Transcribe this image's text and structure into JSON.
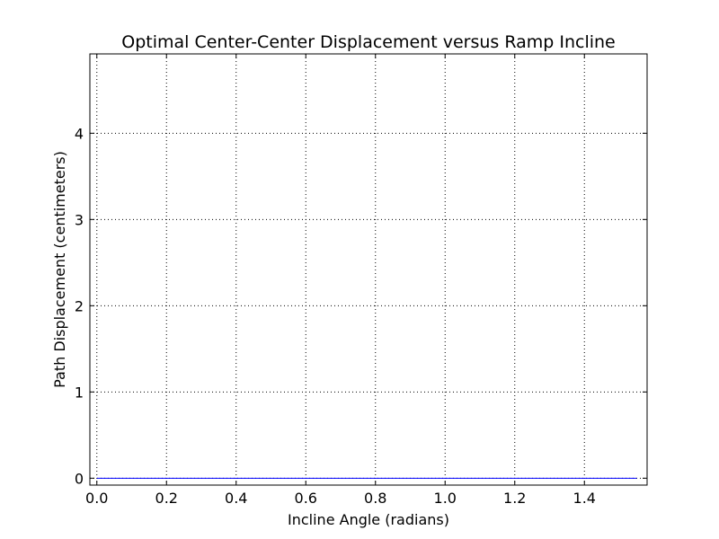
{
  "chart_data": {
    "type": "line",
    "title": "Optimal Center-Center Displacement versus Ramp Incline",
    "xlabel": "Incline Angle (radians)",
    "ylabel": "Path Displacement (centimeters)",
    "xlim": [
      -0.02,
      1.58
    ],
    "ylim": [
      -0.08,
      4.92
    ],
    "x_ticks": [
      0.0,
      0.2,
      0.4,
      0.6,
      0.8,
      1.0,
      1.2,
      1.4
    ],
    "x_tick_labels": [
      "0.0",
      "0.2",
      "0.4",
      "0.6",
      "0.8",
      "1.0",
      "1.2",
      "1.4"
    ],
    "y_ticks": [
      0,
      1,
      2,
      3,
      4
    ],
    "y_tick_labels": [
      "0",
      "1",
      "2",
      "3",
      "4"
    ],
    "grid": true,
    "grid_style": "dotted",
    "series": [
      {
        "color": "#0000ff",
        "x": [
          0.0,
          0.2,
          0.4,
          0.6,
          0.8,
          1.0,
          1.2,
          1.4,
          1.55
        ],
        "y": [
          0,
          0,
          0,
          0,
          0,
          0,
          0,
          0,
          0
        ]
      }
    ]
  }
}
